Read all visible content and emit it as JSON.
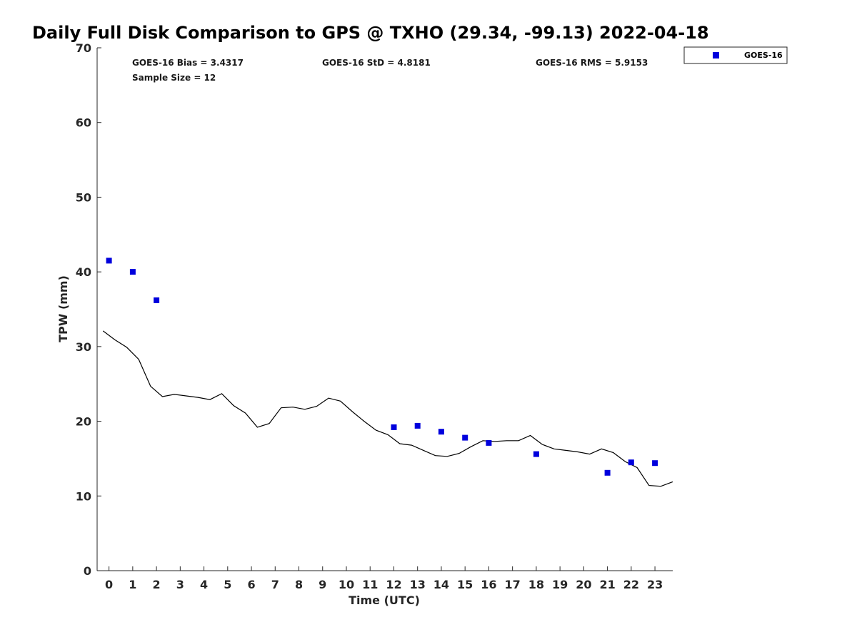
{
  "chart_data": {
    "type": "scatter",
    "title": "Daily Full Disk Comparison to GPS @ TXHO (29.34, -99.13) 2022-04-18",
    "xlabel": "Time (UTC)",
    "ylabel": "TPW (mm)",
    "xlim": [
      -0.5,
      23.75
    ],
    "ylim": [
      0,
      70
    ],
    "xticks": [
      0,
      1,
      2,
      3,
      4,
      5,
      6,
      7,
      8,
      9,
      10,
      11,
      12,
      13,
      14,
      15,
      16,
      17,
      18,
      19,
      20,
      21,
      22,
      23
    ],
    "yticks": [
      0,
      10,
      20,
      30,
      40,
      50,
      60,
      70
    ],
    "grid": false,
    "legend": {
      "position": "top-right-outside",
      "entries": [
        "GOES-16"
      ]
    },
    "stats": {
      "bias": "GOES-16 Bias = 3.4317",
      "std": "GOES-16 StD = 4.8181",
      "rms": "GOES-16 RMS = 5.9153",
      "sample": "Sample Size = 12"
    },
    "series": [
      {
        "name": "GOES-16",
        "kind": "markers",
        "color": "#0000dd",
        "x": [
          0,
          1,
          2,
          12,
          13,
          14,
          15,
          16,
          18,
          21,
          22,
          23
        ],
        "y": [
          41.5,
          40.0,
          36.2,
          19.2,
          19.4,
          18.6,
          17.8,
          17.1,
          15.6,
          13.1,
          14.5,
          14.4
        ]
      },
      {
        "kind": "line",
        "color": "#000000",
        "x": [
          -0.25,
          0.25,
          0.75,
          1.25,
          1.75,
          2.25,
          2.75,
          3.25,
          3.75,
          4.25,
          4.75,
          5.25,
          5.75,
          6.25,
          6.75,
          7.25,
          7.75,
          8.25,
          8.75,
          9.25,
          9.75,
          10.25,
          10.75,
          11.25,
          11.75,
          12.25,
          12.75,
          13.25,
          13.75,
          14.25,
          14.75,
          15.25,
          15.75,
          16.25,
          16.75,
          17.25,
          17.75,
          18.25,
          18.75,
          19.25,
          19.75,
          20.25,
          20.75,
          21.25,
          21.75,
          22.25,
          22.75,
          23.25,
          23.75
        ],
        "y": [
          32.1,
          30.9,
          29.9,
          28.3,
          24.7,
          23.3,
          23.6,
          23.4,
          23.2,
          22.9,
          23.7,
          22.1,
          21.1,
          19.2,
          19.7,
          21.8,
          21.9,
          21.6,
          22.0,
          23.1,
          22.7,
          21.3,
          20.0,
          18.8,
          18.2,
          17.0,
          16.8,
          16.1,
          15.4,
          15.3,
          15.7,
          16.6,
          17.4,
          17.3,
          17.4,
          17.4,
          18.1,
          16.9,
          16.3,
          16.1,
          15.9,
          15.6,
          16.3,
          15.8,
          14.6,
          13.8,
          11.4,
          11.3,
          11.9
        ]
      }
    ]
  }
}
